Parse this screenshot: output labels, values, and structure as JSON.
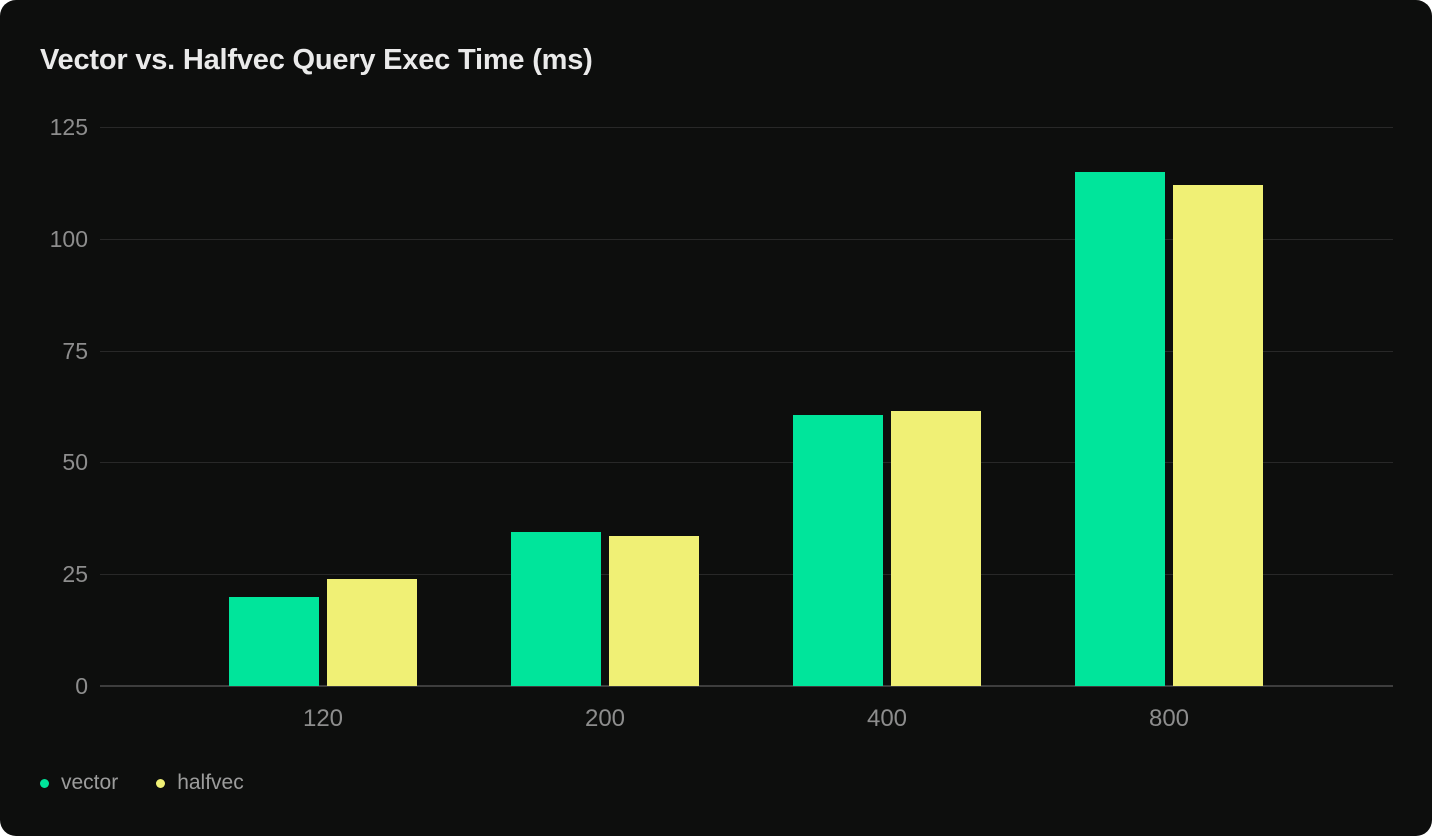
{
  "page": {
    "background": "#ffffff"
  },
  "card": {
    "background": "#0d0e0d"
  },
  "colors": {
    "title": "#eaeaea",
    "tick_label": "#8d8d8d",
    "legend_label": "#9c9c9c",
    "gridline": "#282828",
    "baseline": "#3d3d3d",
    "vector": "#00e59b",
    "halfvec": "#f0f075"
  },
  "chart_data": {
    "type": "bar",
    "title": "Vector vs. Halfvec Query Exec Time (ms)",
    "categories": [
      "120",
      "200",
      "400",
      "800"
    ],
    "series": [
      {
        "name": "vector",
        "color": "#00e59b",
        "values": [
          20,
          34.5,
          60.5,
          115
        ]
      },
      {
        "name": "halfvec",
        "color": "#f0f075",
        "values": [
          24,
          33.5,
          61.5,
          112
        ]
      }
    ],
    "y_ticks": [
      0,
      25,
      50,
      75,
      100,
      125
    ],
    "ylim": [
      0,
      125
    ],
    "xlabel": "",
    "ylabel": "",
    "grid": true,
    "legend_position": "bottom-left"
  }
}
